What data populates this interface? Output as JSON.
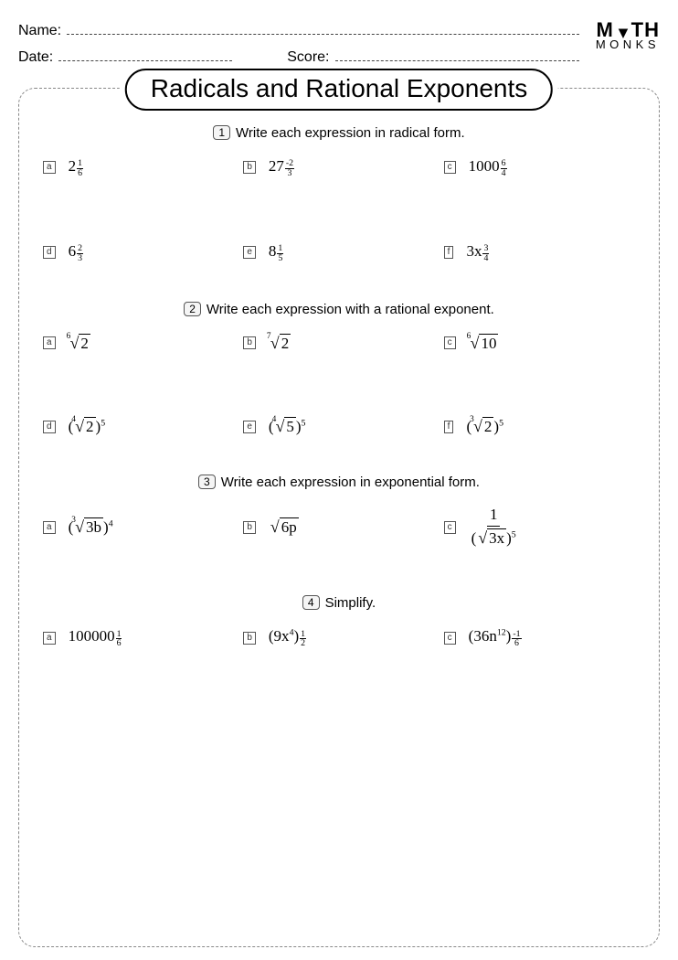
{
  "header": {
    "name_label": "Name:",
    "date_label": "Date:",
    "score_label": "Score:"
  },
  "logo": {
    "line1_a": "M",
    "line1_tri": "▲",
    "line1_b": "TH",
    "line2": "MONKS"
  },
  "title": "Radicals and Rational Exponents",
  "sections": [
    {
      "num": "1",
      "instruction": "Write each expression in radical form.",
      "items": [
        {
          "l": "a",
          "html": "2<span class='frac'><span class='n'>1</span><span class='d'>6</span></span>"
        },
        {
          "l": "b",
          "html": "27<span class='frac'><span class='n'>-2</span><span class='d'>3</span></span>"
        },
        {
          "l": "c",
          "html": "1000<span class='frac'><span class='n'>6</span><span class='d'>4</span></span>"
        },
        {
          "l": "d",
          "html": "6<span class='frac'><span class='n'>2</span><span class='d'>3</span></span>"
        },
        {
          "l": "e",
          "html": "8<span class='frac'><span class='n'>1</span><span class='d'>5</span></span>"
        },
        {
          "l": "f",
          "html": "3x<span class='frac'><span class='n'>3</span><span class='d'>4</span></span>"
        }
      ]
    },
    {
      "num": "2",
      "instruction": "Write each expression with a rational exponent.",
      "items": [
        {
          "l": "a",
          "html": "<span class='rad'><span class='idx'>6</span><span class='surd'>√</span><span class='body'>2</span></span>"
        },
        {
          "l": "b",
          "html": "<span class='rad'><span class='idx'>7</span><span class='surd'>√</span><span class='body'>2</span></span>"
        },
        {
          "l": "c",
          "html": "<span class='rad'><span class='idx'>6</span><span class='surd'>√</span><span class='body'>10</span></span>"
        },
        {
          "l": "d",
          "html": "(<span class='rad'><span class='idx'>4</span><span class='surd'>√</span><span class='body'>2</span></span>)<sup>5</sup>"
        },
        {
          "l": "e",
          "html": "(<span class='rad'><span class='idx'>4</span><span class='surd'>√</span><span class='body'>5</span></span>)<sup>5</sup>"
        },
        {
          "l": "f",
          "html": "(<span class='rad'><span class='idx'>3</span><span class='surd'>√</span><span class='body'>2</span></span>)<sup>5</sup>"
        }
      ]
    },
    {
      "num": "3",
      "instruction": "Write each expression in exponential form.",
      "items": [
        {
          "l": "a",
          "html": "(<span class='rad'><span class='idx'>3</span><span class='surd'>√</span><span class='body'>3b</span></span>)<sup>4</sup>"
        },
        {
          "l": "b",
          "html": "<span class='rad'><span class='surd'>√</span><span class='body'>6p</span></span>"
        },
        {
          "l": "c",
          "html": "<span class='bigfrac'><span class='n'>1</span><span class='d'>(<span class='rad'><span class='surd'>√</span><span class='body'>3x</span></span>)<sup>5</sup></span></span>"
        }
      ]
    },
    {
      "num": "4",
      "instruction": "Simplify.",
      "items": [
        {
          "l": "a",
          "html": "100000<span class='frac'><span class='n'>1</span><span class='d'>6</span></span>"
        },
        {
          "l": "b",
          "html": "(9x<sup>4</sup>)<span class='frac'><span class='n'>1</span><span class='d'>2</span></span>"
        },
        {
          "l": "c",
          "html": "(36n<sup>12</sup>)<span class='frac'><span class='n'>-1</span><span class='d'>6</span></span>"
        }
      ]
    }
  ]
}
